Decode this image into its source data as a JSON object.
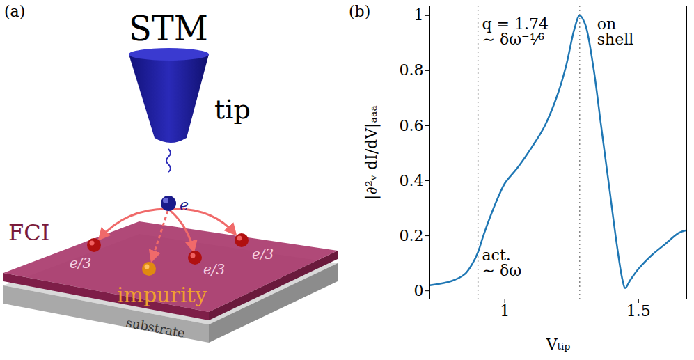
{
  "chart_data": {
    "type": "line",
    "title": "(b)",
    "x_label": "Vₜᵢₚ",
    "y_label": "|∂²ᵥ dI/dV|ₐₐₐ",
    "x": [
      0.72,
      0.8,
      0.85,
      0.88,
      0.9,
      0.92,
      0.95,
      0.98,
      1.0,
      1.05,
      1.1,
      1.15,
      1.2,
      1.23,
      1.26,
      1.28,
      1.3,
      1.33,
      1.36,
      1.39,
      1.42,
      1.44,
      1.45,
      1.47,
      1.5,
      1.55,
      1.6,
      1.65,
      1.68
    ],
    "values": [
      0.02,
      0.035,
      0.06,
      0.1,
      0.14,
      0.2,
      0.28,
      0.35,
      0.39,
      0.45,
      0.52,
      0.6,
      0.72,
      0.82,
      0.95,
      1.0,
      0.97,
      0.82,
      0.6,
      0.38,
      0.16,
      0.04,
      0.01,
      0.04,
      0.08,
      0.13,
      0.17,
      0.21,
      0.22
    ],
    "color": "#1f77b4",
    "xlim": [
      0.72,
      1.68
    ],
    "xticks": [
      1,
      1.5
    ],
    "ylim": [
      -0.03,
      1.035
    ],
    "yticks": [
      0,
      0.2,
      0.4,
      0.6,
      0.8,
      1
    ],
    "grid": false,
    "marker_lines": [
      0.9,
      1.28
    ],
    "annotations": [
      {
        "text": "q = 1.74\n∼ δω⁻¹⁄⁶",
        "x": 0.915,
        "y": 0.99
      },
      {
        "text": "act.\n∼ δω",
        "x": 0.915,
        "y": 0.15
      },
      {
        "text": "on\nshell",
        "x": 1.345,
        "y": 0.99
      }
    ]
  },
  "diagram": {
    "title": "(a)",
    "labels": {
      "instrument": "STM",
      "tip": "tip",
      "electron": "e",
      "material": "FCI",
      "fractional": [
        "e/3",
        "e/3",
        "e/3"
      ],
      "impurity": "impurity",
      "substrate": "substrate"
    }
  }
}
